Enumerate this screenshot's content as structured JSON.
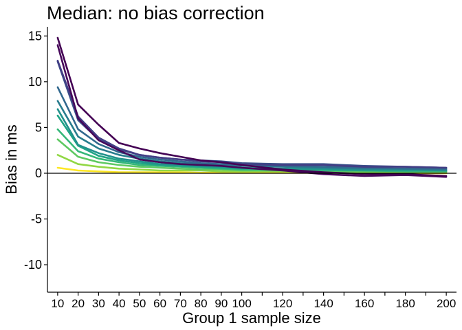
{
  "chart_data": {
    "type": "line",
    "title": "Median: no bias correction",
    "xlabel": "Group 1 sample size",
    "ylabel": "Bias in ms",
    "xlim": [
      5,
      205
    ],
    "ylim": [
      -13,
      16
    ],
    "x": [
      10,
      20,
      30,
      40,
      50,
      60,
      70,
      80,
      90,
      100,
      120,
      140,
      160,
      180,
      200
    ],
    "x_tick_labels": [
      "10",
      "20",
      "30",
      "40",
      "50",
      "60",
      "70",
      "80",
      "90",
      "100",
      "120",
      "140",
      "160",
      "180",
      "200"
    ],
    "x_minor_ticks": [
      110,
      130,
      150,
      170,
      190
    ],
    "y_ticks": [
      -10,
      -5,
      0,
      5,
      10,
      15
    ],
    "y_tick_labels": [
      "-10",
      "-5",
      "0",
      "5",
      "10",
      "15"
    ],
    "reference_line": 0,
    "grid": false,
    "legend": "none",
    "series": [
      {
        "color": "#440154",
        "values": [
          14.8,
          7.5,
          5.3,
          3.3,
          2.7,
          2.2,
          1.8,
          1.4,
          1.2,
          0.9,
          0.4,
          0.1,
          -0.1,
          -0.1,
          -0.3
        ]
      },
      {
        "color": "#46075a",
        "values": [
          14.0,
          6.0,
          3.6,
          2.5,
          1.5,
          1.2,
          1.0,
          0.9,
          0.8,
          0.6,
          0.3,
          -0.1,
          -0.3,
          -0.2,
          -0.4
        ]
      },
      {
        "color": "#433e85",
        "values": [
          12.3,
          6.2,
          3.9,
          2.7,
          2.0,
          1.7,
          1.5,
          1.3,
          1.2,
          1.0,
          0.9,
          0.9,
          0.7,
          0.7,
          0.6
        ]
      },
      {
        "color": "#3b528b",
        "values": [
          12.2,
          5.8,
          3.7,
          2.6,
          2.0,
          1.7,
          1.5,
          1.4,
          1.3,
          1.1,
          1.0,
          1.0,
          0.8,
          0.7,
          0.6
        ]
      },
      {
        "color": "#31688e",
        "values": [
          9.4,
          4.8,
          3.2,
          2.3,
          1.8,
          1.5,
          1.3,
          1.1,
          1.0,
          0.9,
          0.8,
          0.7,
          0.6,
          0.5,
          0.5
        ]
      },
      {
        "color": "#287c8e",
        "values": [
          7.9,
          4.0,
          2.7,
          2.0,
          1.6,
          1.3,
          1.1,
          1.0,
          0.9,
          0.8,
          0.7,
          0.6,
          0.5,
          0.5,
          0.4
        ]
      },
      {
        "color": "#21918c",
        "values": [
          7.0,
          3.1,
          2.2,
          1.6,
          1.3,
          1.0,
          0.9,
          0.8,
          0.7,
          0.6,
          0.5,
          0.5,
          0.4,
          0.4,
          0.3
        ]
      },
      {
        "color": "#20a486",
        "values": [
          6.3,
          3.0,
          1.9,
          1.4,
          1.1,
          0.9,
          0.8,
          0.7,
          0.6,
          0.5,
          0.5,
          0.4,
          0.3,
          0.3,
          0.3
        ]
      },
      {
        "color": "#35b779",
        "values": [
          4.8,
          2.4,
          1.6,
          1.2,
          0.9,
          0.8,
          0.7,
          0.6,
          0.5,
          0.4,
          0.4,
          0.3,
          0.3,
          0.2,
          0.2
        ]
      },
      {
        "color": "#5ec962",
        "values": [
          3.7,
          1.8,
          1.2,
          0.9,
          0.7,
          0.6,
          0.5,
          0.4,
          0.4,
          0.3,
          0.3,
          0.2,
          0.2,
          0.2,
          0.2
        ]
      },
      {
        "color": "#90d743",
        "values": [
          2.0,
          1.0,
          0.7,
          0.5,
          0.4,
          0.3,
          0.3,
          0.3,
          0.2,
          0.2,
          0.2,
          0.1,
          0.1,
          0.1,
          0.1
        ]
      },
      {
        "color": "#fde725",
        "values": [
          0.6,
          0.3,
          0.2,
          0.1,
          0.1,
          0.1,
          0.1,
          0.05,
          0.05,
          0.05,
          0.05,
          0.05,
          0.05,
          0.0,
          0.0
        ]
      }
    ]
  }
}
